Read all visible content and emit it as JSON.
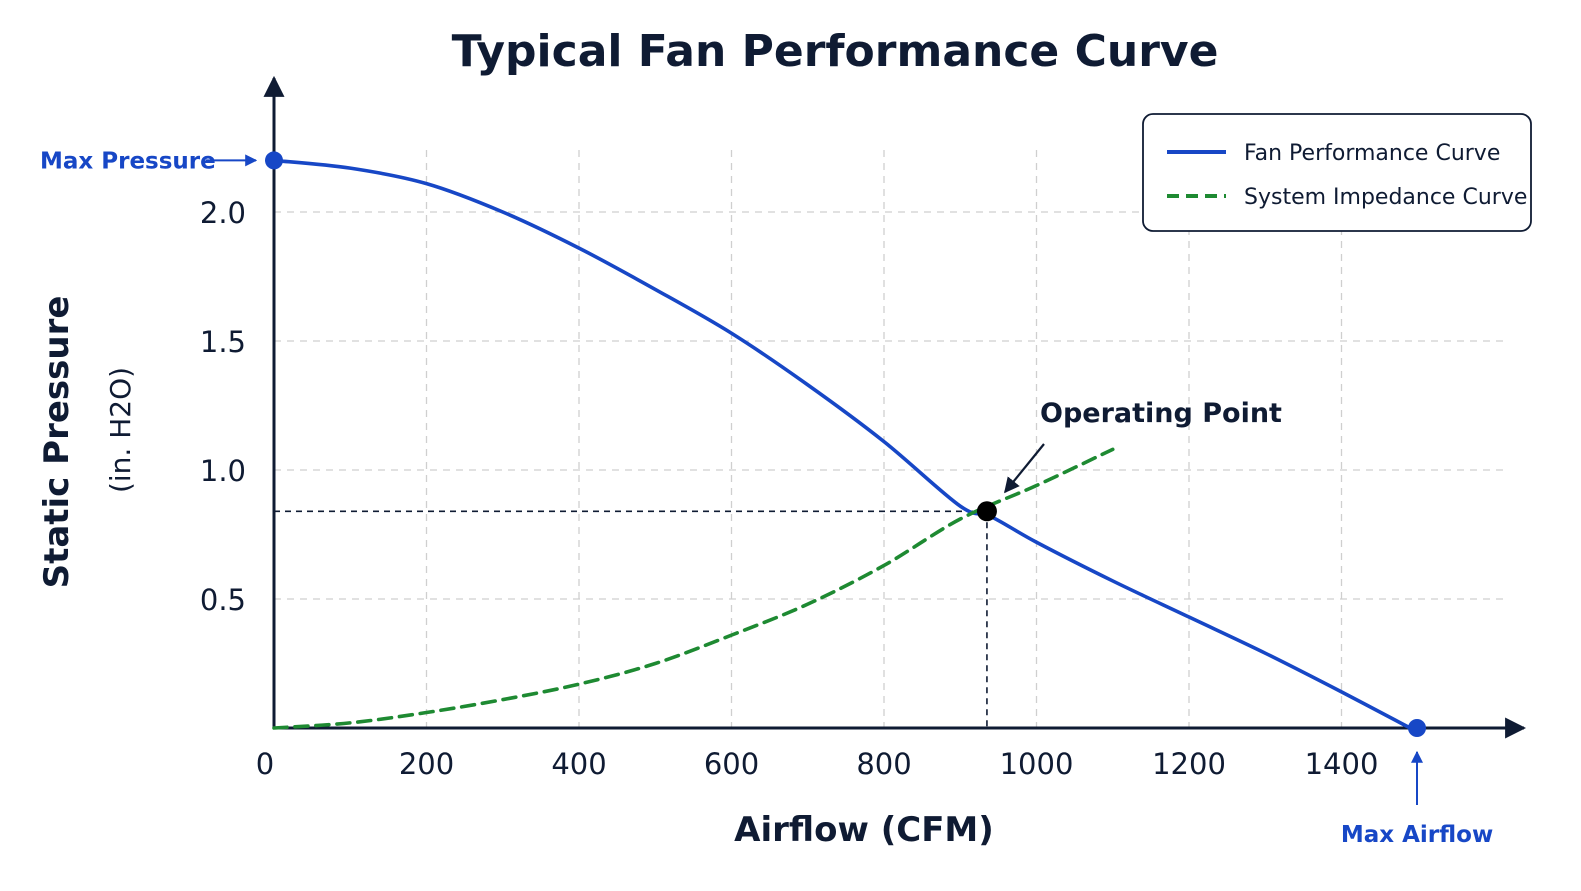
{
  "chart_data": {
    "type": "line",
    "title": "Typical Fan Performance Curve",
    "xlabel": "Airflow (CFM)",
    "ylabel": "Static Pressure",
    "ylabel_unit": "(in. H2O)",
    "xlim": [
      0,
      1500
    ],
    "ylim": [
      0,
      2.3
    ],
    "x_ticks": [
      0,
      200,
      400,
      600,
      800,
      1000,
      1200,
      1400
    ],
    "x_tick_labels": [
      "0",
      "200",
      "400",
      "600",
      "800",
      "1000",
      "1200",
      "1400"
    ],
    "y_ticks": [
      0.5,
      1.0,
      1.5,
      2.0
    ],
    "y_tick_labels": [
      "0.5",
      "1.0",
      "1.5",
      "2.0"
    ],
    "grid": true,
    "legend_position": "top-right",
    "series": [
      {
        "name": "Fan Performance Curve",
        "color": "#1747c6",
        "style": "solid",
        "x": [
          0,
          100,
          200,
          300,
          400,
          500,
          600,
          700,
          800,
          900,
          940,
          1000,
          1100,
          1200,
          1300,
          1400,
          1490
        ],
        "y": [
          2.2,
          2.17,
          2.11,
          2.0,
          1.86,
          1.7,
          1.53,
          1.33,
          1.11,
          0.86,
          0.82,
          0.72,
          0.57,
          0.43,
          0.29,
          0.14,
          0.0
        ]
      },
      {
        "name": "System Impedance Curve",
        "color": "#1e8a32",
        "style": "dashed",
        "x": [
          0,
          100,
          200,
          300,
          400,
          500,
          600,
          700,
          800,
          900,
          1000,
          1100
        ],
        "y": [
          0.0,
          0.02,
          0.06,
          0.11,
          0.17,
          0.25,
          0.36,
          0.48,
          0.63,
          0.81,
          0.94,
          1.08
        ]
      }
    ],
    "operating_point": {
      "label": "Operating Point",
      "x": 935,
      "y": 0.84
    },
    "max_pressure": {
      "label": "Max Pressure",
      "x": 0,
      "y": 2.2
    },
    "max_airflow": {
      "label": "Max Airflow",
      "x": 1490,
      "y": 0
    }
  }
}
